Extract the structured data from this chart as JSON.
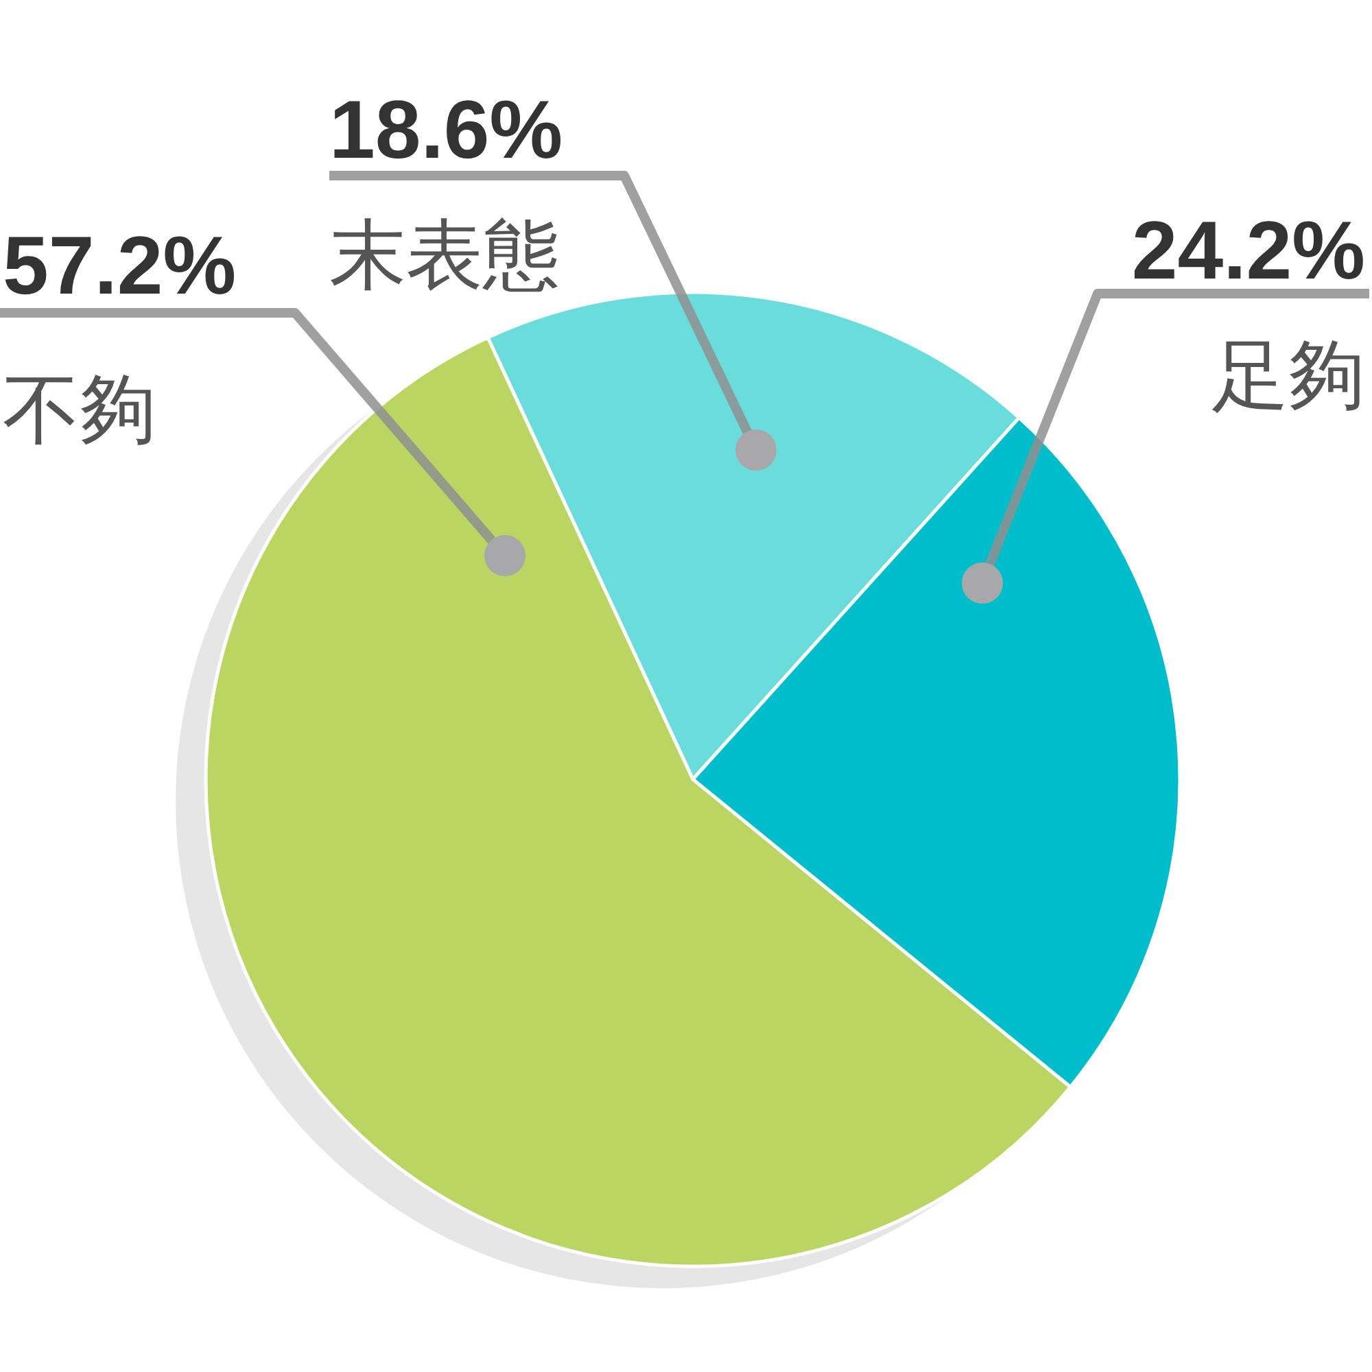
{
  "chart_data": {
    "type": "pie",
    "categories": [
      "末表態",
      "足夠",
      "不夠"
    ],
    "values": [
      18.6,
      24.2,
      57.2
    ],
    "value_labels": [
      "18.6%",
      "24.2%",
      "57.2%"
    ],
    "colors": [
      "#6adcdc",
      "#00bdcb",
      "#bbd562"
    ]
  }
}
